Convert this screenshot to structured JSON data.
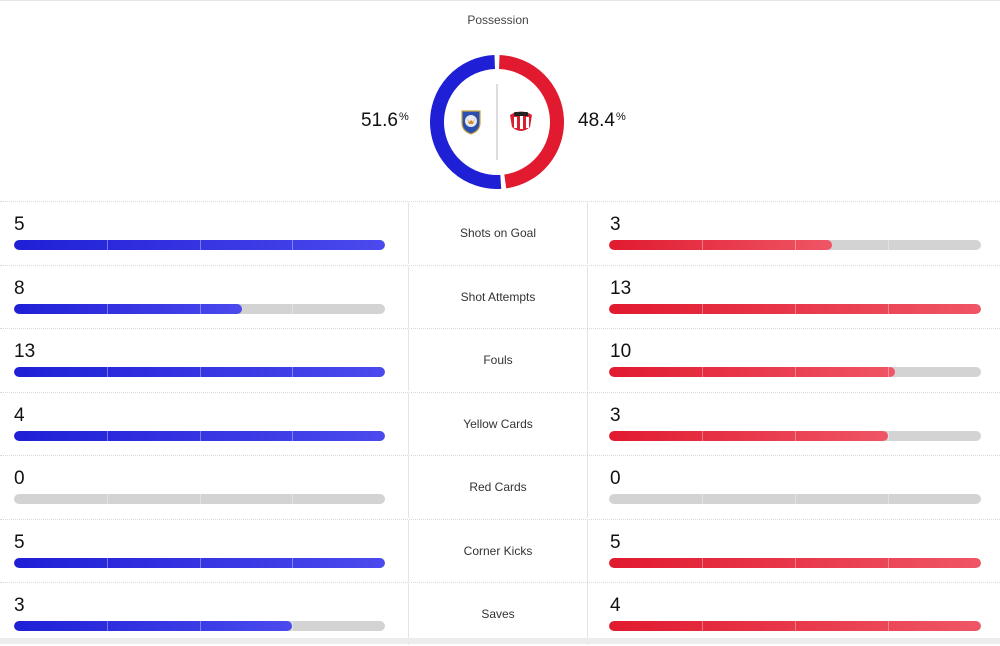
{
  "possession": {
    "title": "Possession",
    "home": {
      "value": "51.6",
      "unit": "%",
      "fraction": 0.516
    },
    "away": {
      "value": "48.4",
      "unit": "%",
      "fraction": 0.484
    }
  },
  "colors": {
    "home": "#1f1fd6",
    "away": "#e11a2f",
    "track": "#d3d3d3"
  },
  "icons": {
    "home_crest": "fox-crest-icon",
    "away_crest": "black-cats-crest-icon"
  },
  "stats": [
    {
      "label": "Shots on Goal",
      "home": "5",
      "away": "3",
      "home_fill": 1.0,
      "away_fill": 0.6
    },
    {
      "label": "Shot Attempts",
      "home": "8",
      "away": "13",
      "home_fill": 0.615,
      "away_fill": 1.0
    },
    {
      "label": "Fouls",
      "home": "13",
      "away": "10",
      "home_fill": 1.0,
      "away_fill": 0.77
    },
    {
      "label": "Yellow Cards",
      "home": "4",
      "away": "3",
      "home_fill": 1.0,
      "away_fill": 0.75
    },
    {
      "label": "Red Cards",
      "home": "0",
      "away": "0",
      "home_fill": 0.0,
      "away_fill": 0.0
    },
    {
      "label": "Corner Kicks",
      "home": "5",
      "away": "5",
      "home_fill": 1.0,
      "away_fill": 1.0
    },
    {
      "label": "Saves",
      "home": "3",
      "away": "4",
      "home_fill": 0.75,
      "away_fill": 1.0
    }
  ]
}
